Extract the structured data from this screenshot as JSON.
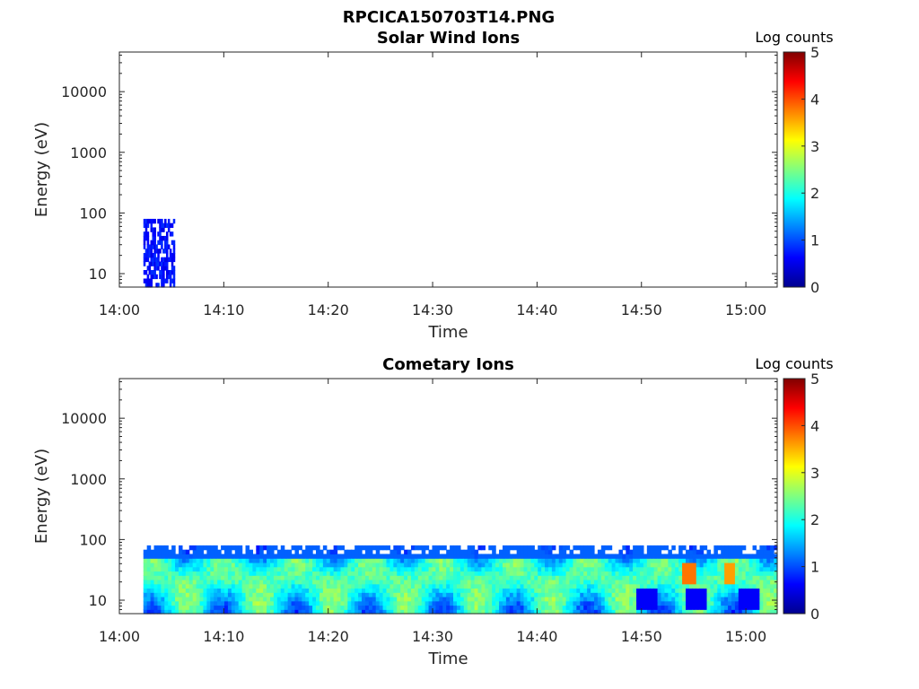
{
  "figure": {
    "title": "RPCICA150703T14.PNG"
  },
  "chart_data": [
    {
      "type": "heatmap",
      "title": "Solar Wind Ions",
      "xlabel": "Time",
      "ylabel": "Energy (eV)",
      "y_scale": "log",
      "xlim": [
        "14:00",
        "15:03"
      ],
      "ylim": [
        6,
        45000
      ],
      "x_ticks": [
        "14:00",
        "14:10",
        "14:20",
        "14:30",
        "14:40",
        "14:50",
        "15:00"
      ],
      "y_ticks": [
        "10",
        "100",
        "1000",
        "10000"
      ],
      "colorbar": {
        "label": "Log counts",
        "range": [
          0,
          5
        ],
        "ticks": [
          "0",
          "1",
          "2",
          "3",
          "4",
          "5"
        ],
        "colormap": "jet"
      },
      "data_extent": {
        "time_start": "14:02.3",
        "time_end": "14:05.3",
        "energy_min": 6,
        "energy_max": 80,
        "log_counts_level": 0.8
      }
    },
    {
      "type": "heatmap",
      "title": "Cometary Ions",
      "xlabel": "Time",
      "ylabel": "Energy (eV)",
      "y_scale": "log",
      "xlim": [
        "14:00",
        "15:03"
      ],
      "ylim": [
        6,
        45000
      ],
      "x_ticks": [
        "14:00",
        "14:10",
        "14:20",
        "14:30",
        "14:40",
        "14:50",
        "15:00"
      ],
      "y_ticks": [
        "10",
        "100",
        "1000",
        "10000"
      ],
      "colorbar": {
        "label": "Log counts",
        "range": [
          0,
          5
        ],
        "ticks": [
          "0",
          "1",
          "2",
          "3",
          "4",
          "5"
        ],
        "colormap": "jet"
      },
      "data_extent": {
        "time_start": "14:02.3",
        "time_end": "15:03",
        "energy_min": 6,
        "energy_max": 80,
        "log_counts_typical": [
          1.5,
          3.0
        ],
        "log_counts_peak": 3.8
      }
    }
  ]
}
